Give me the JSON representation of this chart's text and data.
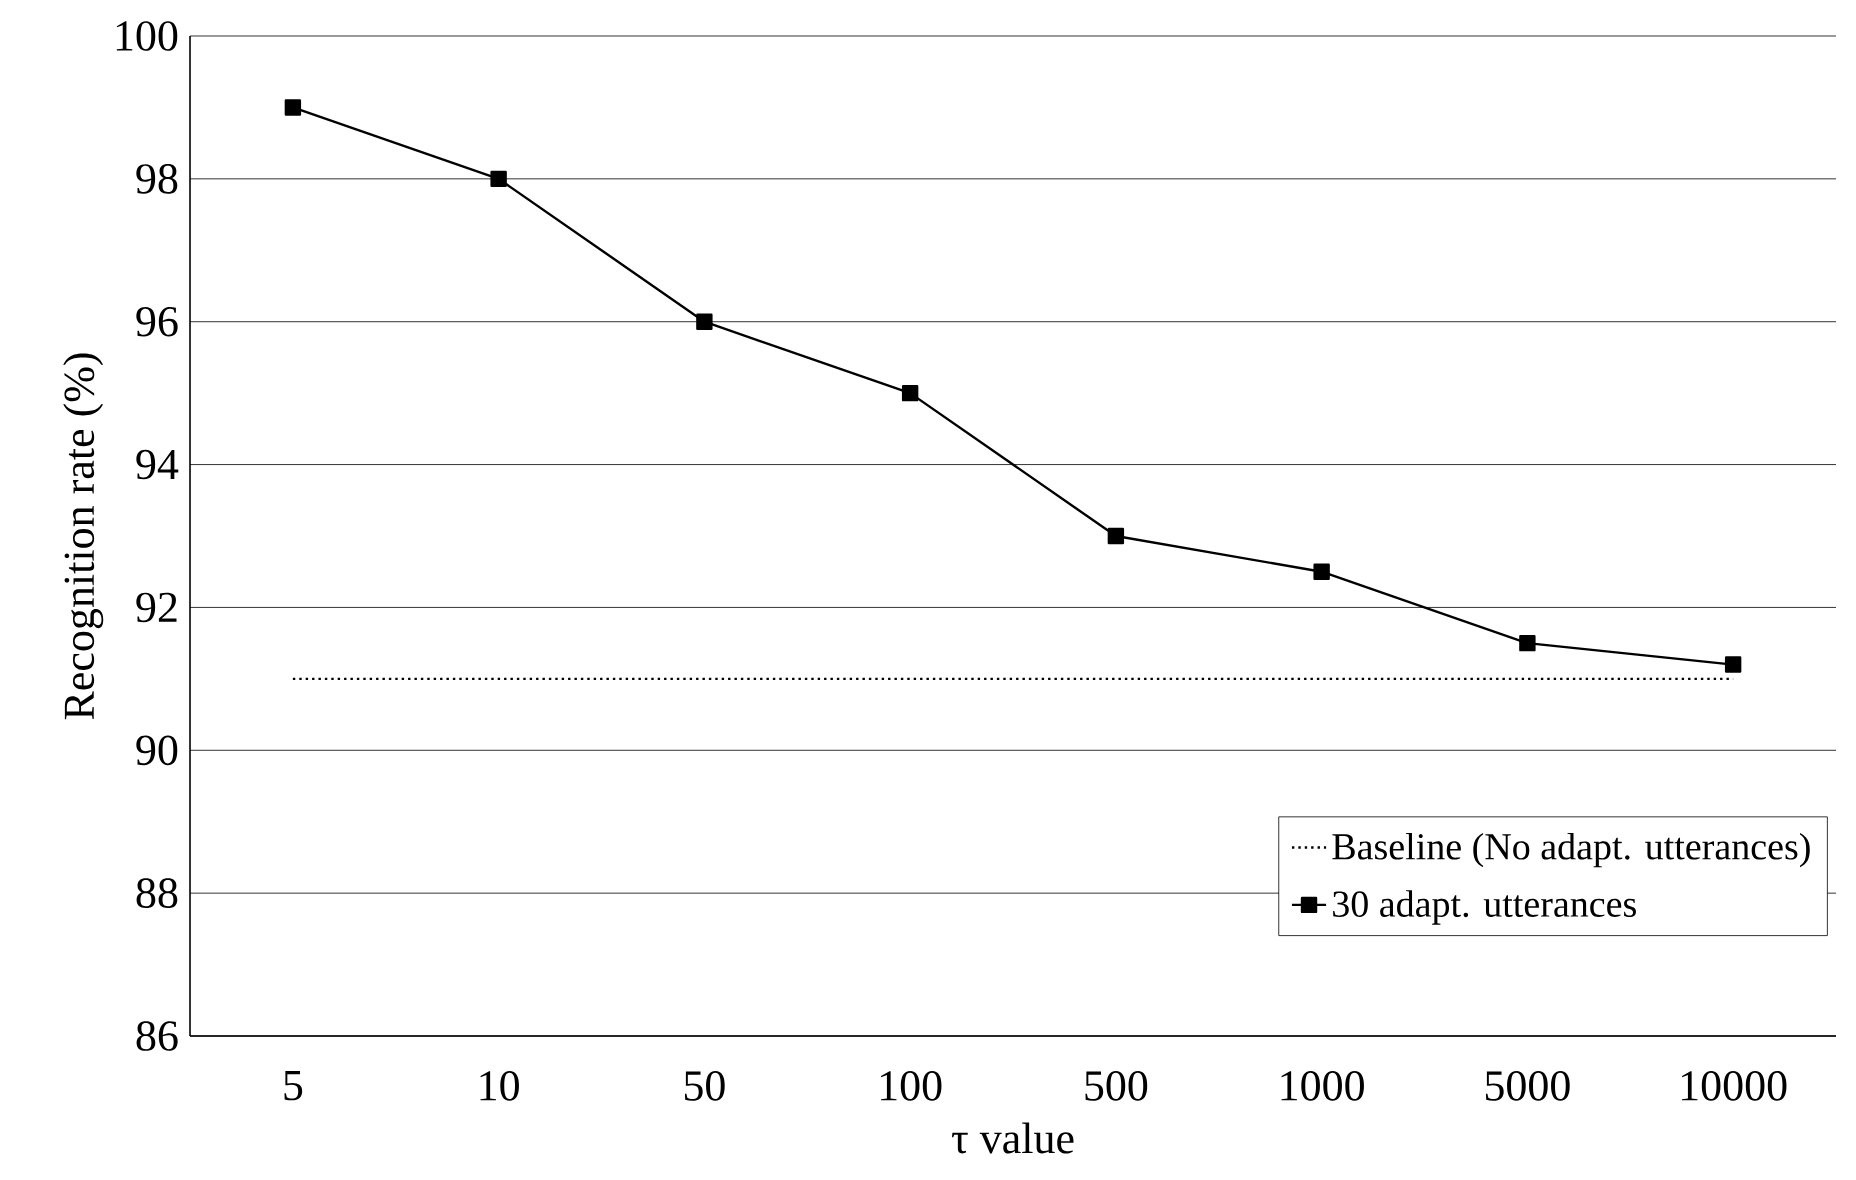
{
  "chart_data": {
    "type": "line",
    "xlabel": "τ    value",
    "ylabel": "Recognition rate (%)",
    "categories": [
      "5",
      "10",
      "50",
      "100",
      "500",
      "1000",
      "5000",
      "10000"
    ],
    "series": [
      {
        "name": "Baseline (No adapt. utterances)",
        "color": "#000000",
        "values": [
          91,
          91,
          91,
          91,
          91,
          91,
          91,
          91
        ],
        "marker": "none",
        "line_style": "dotted"
      },
      {
        "name": "30 adapt. utterances",
        "color": "#000000",
        "values": [
          99,
          98,
          96,
          95,
          93,
          92.5,
          91.5,
          91.2
        ],
        "marker": "square",
        "line_style": "solid"
      }
    ],
    "ylim": [
      86,
      100
    ],
    "yticks": [
      86,
      88,
      90,
      92,
      94,
      96,
      98,
      100
    ],
    "grid": "y",
    "legend": "bottom right"
  }
}
